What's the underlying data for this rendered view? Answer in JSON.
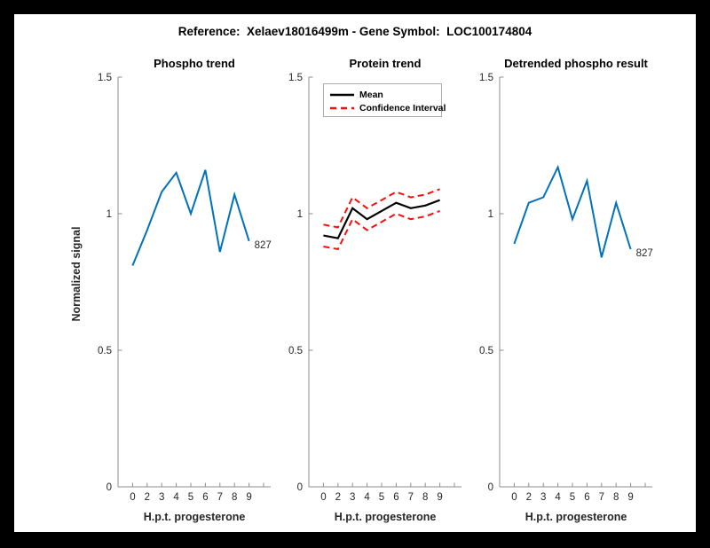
{
  "figure": {
    "title": "Reference:  Xelaev18016499m - Gene Symbol:  LOC100174804"
  },
  "colors": {
    "blue": "#0072BD",
    "red": "#F50F0F",
    "black": "#000000",
    "axis": "#8c8c8c",
    "text": "#262626"
  },
  "axis": {
    "xlabel": "H.p.t. progesterone",
    "ylabel": "Normalized signal",
    "xticklabels": [
      "0",
      "2",
      "3",
      "4",
      "5",
      "6",
      "7",
      "8",
      "9"
    ],
    "ytick_values": [
      0,
      0.5,
      1,
      1.5
    ],
    "yticklabels": [
      "0",
      "0.5",
      "1",
      "1.5"
    ],
    "ylim": [
      0,
      1.5
    ]
  },
  "chart_data": [
    {
      "type": "line",
      "title": "Phospho trend",
      "xlabel": "H.p.t. progesterone",
      "ylabel": "Normalized signal",
      "ylim": [
        0,
        1.5
      ],
      "categories": [
        "0",
        "2",
        "3",
        "4",
        "5",
        "6",
        "7",
        "8",
        "9"
      ],
      "series": [
        {
          "name": "phospho",
          "color": "blue",
          "style": "solid",
          "values": [
            0.81,
            0.94,
            1.08,
            1.15,
            1.0,
            1.16,
            0.86,
            1.07,
            0.9
          ]
        }
      ],
      "end_label": "827",
      "grid": false
    },
    {
      "type": "line",
      "title": "Protein trend",
      "xlabel": "H.p.t. progesterone",
      "ylim": [
        0,
        1.5
      ],
      "categories": [
        "0",
        "2",
        "3",
        "4",
        "5",
        "6",
        "7",
        "8",
        "9"
      ],
      "legend": [
        "Mean",
        "Confidence Interval"
      ],
      "legend_position": "top-left",
      "series": [
        {
          "name": "ci-upper",
          "color": "red",
          "style": "dashed",
          "values": [
            0.96,
            0.95,
            1.06,
            1.02,
            1.05,
            1.08,
            1.06,
            1.07,
            1.09
          ]
        },
        {
          "name": "ci-lower",
          "color": "red",
          "style": "dashed",
          "values": [
            0.88,
            0.87,
            0.98,
            0.94,
            0.97,
            1.0,
            0.98,
            0.99,
            1.01
          ]
        },
        {
          "name": "mean",
          "color": "black",
          "style": "solid",
          "values": [
            0.92,
            0.91,
            1.02,
            0.98,
            1.01,
            1.04,
            1.02,
            1.03,
            1.05
          ]
        }
      ],
      "grid": false
    },
    {
      "type": "line",
      "title": "Detrended phospho result",
      "xlabel": "H.p.t. progesterone",
      "ylim": [
        0,
        1.5
      ],
      "categories": [
        "0",
        "2",
        "3",
        "4",
        "5",
        "6",
        "7",
        "8",
        "9"
      ],
      "series": [
        {
          "name": "detrended-phospho",
          "color": "blue",
          "style": "solid",
          "values": [
            0.89,
            1.04,
            1.06,
            1.17,
            0.98,
            1.12,
            0.84,
            1.04,
            0.87
          ]
        }
      ],
      "end_label": "827",
      "grid": false
    }
  ]
}
